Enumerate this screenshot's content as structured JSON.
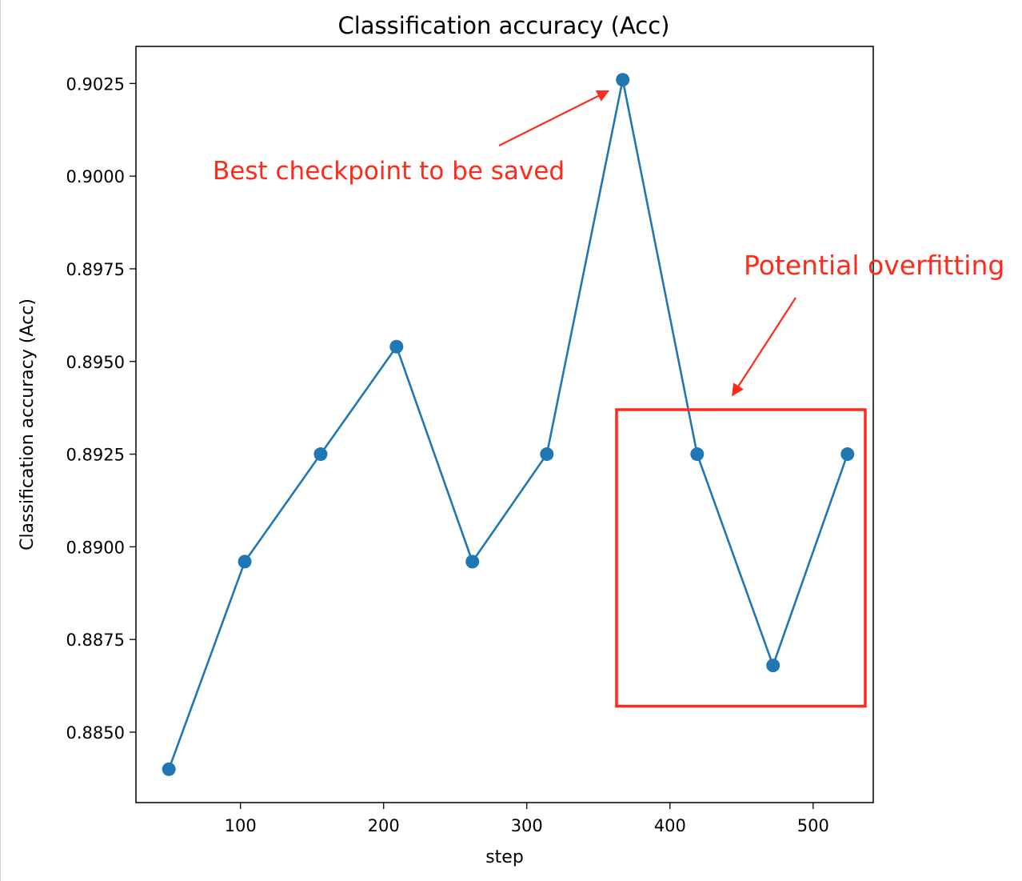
{
  "chart_data": {
    "type": "line",
    "title": "Classification accuracy (Acc)",
    "xlabel": "step",
    "ylabel": "Classification accuracy (Acc)",
    "xlim": [
      27,
      542
    ],
    "ylim": [
      0.8831,
      0.9035
    ],
    "xticks": [
      100,
      200,
      300,
      400,
      500
    ],
    "xtick_labels": [
      "100",
      "200",
      "300",
      "400",
      "500"
    ],
    "yticks": [
      0.885,
      0.8875,
      0.89,
      0.8925,
      0.895,
      0.8975,
      0.9,
      0.9025
    ],
    "ytick_labels": [
      "0.8850",
      "0.8875",
      "0.8900",
      "0.8925",
      "0.8950",
      "0.8975",
      "0.9000",
      "0.9025"
    ],
    "grid": false,
    "series": [
      {
        "color": "#1f77b4",
        "marker": "circle",
        "x": [
          50,
          103,
          156,
          209,
          262,
          314,
          367,
          419,
          472,
          524
        ],
        "y": [
          0.884,
          0.8896,
          0.8925,
          0.8954,
          0.8896,
          0.8925,
          0.9026,
          0.8925,
          0.8868,
          0.8925
        ]
      }
    ],
    "annotations": [
      {
        "text": "Best checkpoint to be saved",
        "color": "#ff2a1a",
        "points_to": {
          "x": 367,
          "y": 0.9026
        }
      },
      {
        "text": "Potential  overfitting",
        "color": "#ff2a1a",
        "highlight_range": {
          "x": [
            367,
            542
          ],
          "y": [
            0.8857,
            0.8937
          ]
        }
      }
    ]
  }
}
